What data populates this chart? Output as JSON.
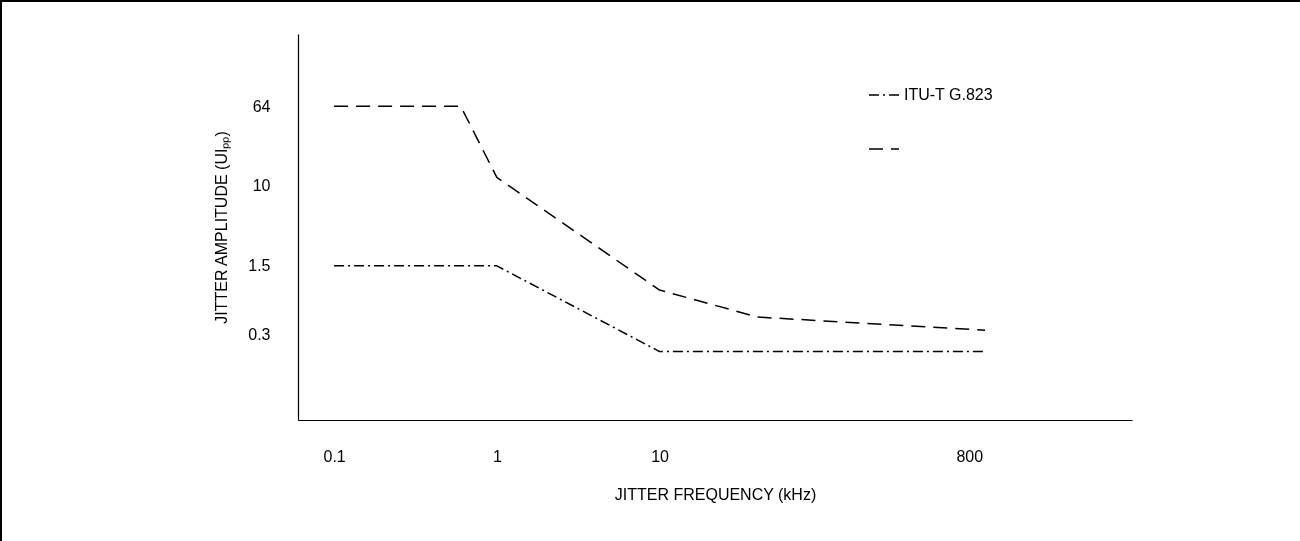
{
  "chart_data": {
    "type": "line",
    "xlabel": "JITTER FREQUENCY  (kHz)",
    "ylabel": "JITTER AMPLITUDE (UIₚₚ)",
    "log": "xy",
    "xlim": [
      0.06,
      8000
    ],
    "ylim": [
      0.04,
      350
    ],
    "xticks": [
      0.1,
      1,
      10,
      800
    ],
    "yticks": [
      0.3,
      1.5,
      10,
      64
    ],
    "grid": false,
    "legend": "top right",
    "marker": "none",
    "series": [
      {
        "name": "ITU-T G.823",
        "color": "#000000",
        "line_style": "dashdot",
        "x": [
          0.1,
          1,
          10,
          1000
        ],
        "values": [
          1.5,
          1.5,
          0.2,
          0.2
        ]
      },
      {
        "color": "#000000",
        "line_style": "dashed",
        "x": [
          0.1,
          0.6,
          1,
          10,
          40,
          1000
        ],
        "values": [
          64,
          64,
          12,
          0.85,
          0.45,
          0.33
        ]
      }
    ]
  }
}
